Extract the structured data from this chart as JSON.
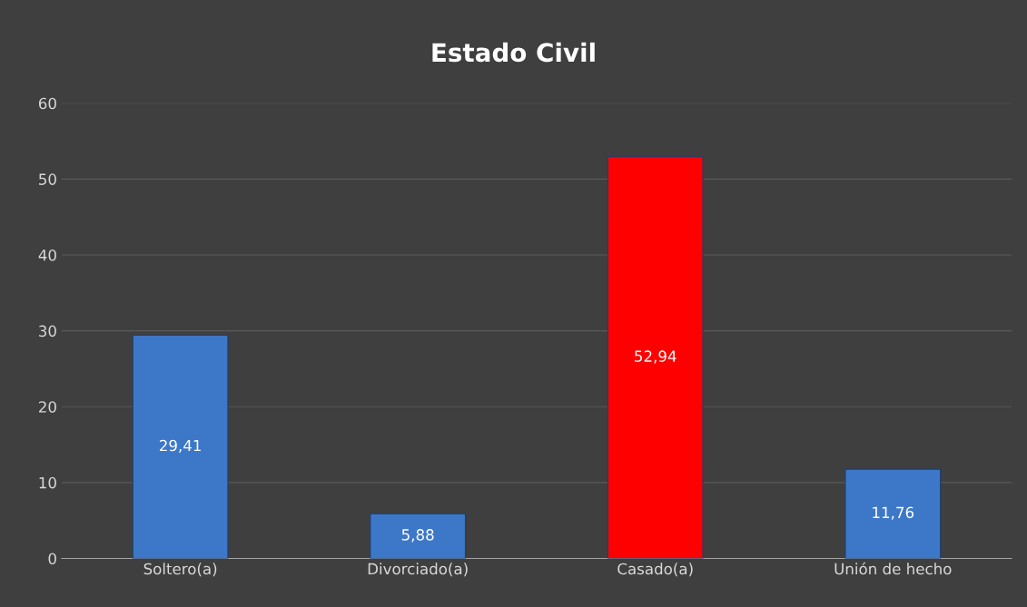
{
  "chart_data": {
    "type": "bar",
    "title": "Estado Civil",
    "categories": [
      "Soltero(a)",
      "Divorciado(a)",
      "Casado(a)",
      "Unión de hecho"
    ],
    "values": [
      29.41,
      5.88,
      52.94,
      11.76
    ],
    "value_labels": [
      "29,41",
      "5,88",
      "52,94",
      "11,76"
    ],
    "colors": [
      "#3d78c8",
      "#3d78c8",
      "#ff0000",
      "#3d78c8"
    ],
    "ylim": [
      0,
      60
    ],
    "yticks": [
      0,
      10,
      20,
      30,
      40,
      50,
      60
    ],
    "grid": "y",
    "legend": false
  }
}
